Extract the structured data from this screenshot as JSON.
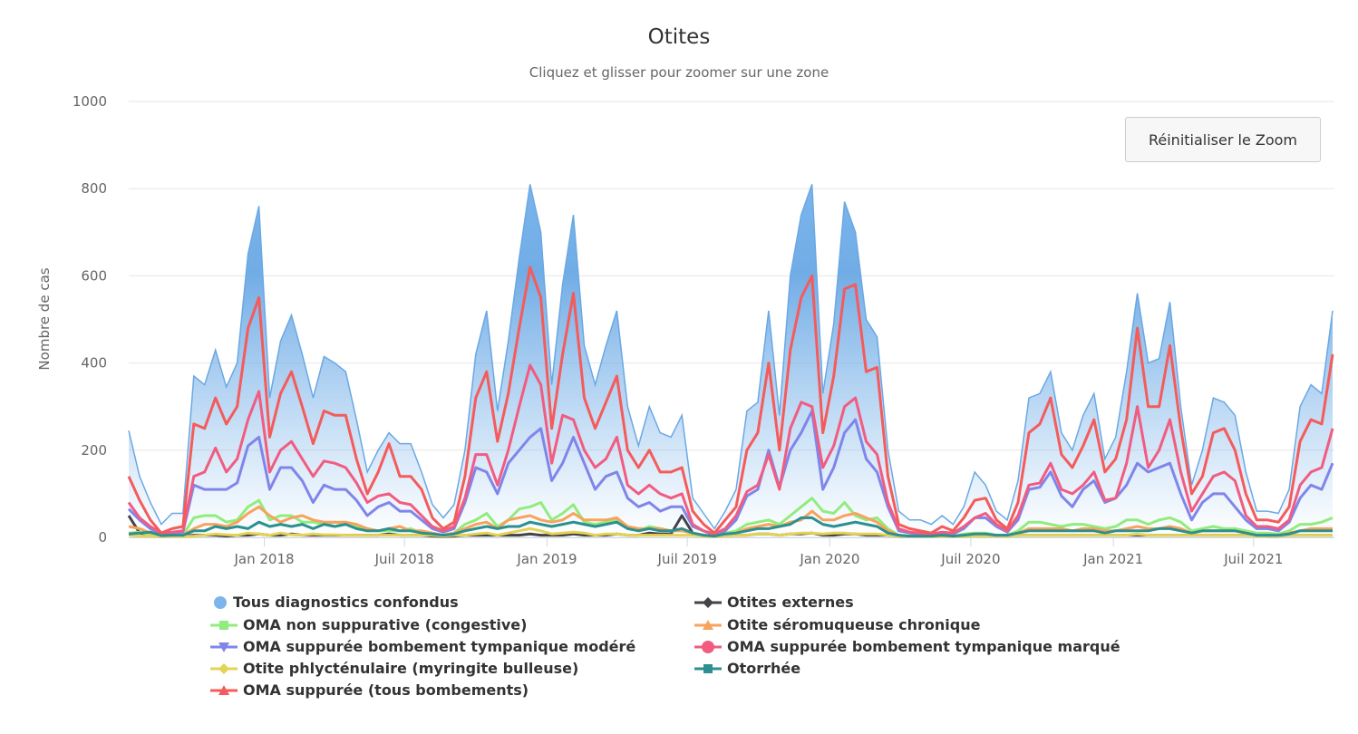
{
  "title": "Otites",
  "subtitle": "Cliquez et glisser pour zoomer sur une zone",
  "reset_zoom_label": "Réinitialiser le Zoom",
  "chart_data": {
    "type": "line",
    "title": "Otites",
    "subtitle": "Cliquez et glisser pour zoomer sur une zone",
    "xlabel": "",
    "ylabel": "Nombre de cas",
    "ylim": [
      0,
      1000
    ],
    "yticks": [
      0,
      200,
      400,
      600,
      800,
      1000
    ],
    "xticks": [
      {
        "date": "2018-01-01",
        "label": "Jan 2018"
      },
      {
        "date": "2018-07-01",
        "label": "Juil 2018"
      },
      {
        "date": "2019-01-01",
        "label": "Jan 2019"
      },
      {
        "date": "2019-07-01",
        "label": "Juil 2019"
      },
      {
        "date": "2020-01-01",
        "label": "Jan 2020"
      },
      {
        "date": "2020-07-01",
        "label": "Juil 2020"
      },
      {
        "date": "2021-01-01",
        "label": "Jan 2021"
      },
      {
        "date": "2021-07-01",
        "label": "Juil 2021"
      }
    ],
    "grid": true,
    "legend_position": "bottom",
    "x": [
      "2017-07-10",
      "2017-07-24",
      "2017-08-07",
      "2017-08-21",
      "2017-09-04",
      "2017-09-18",
      "2017-10-02",
      "2017-10-16",
      "2017-10-30",
      "2017-11-13",
      "2017-11-27",
      "2017-12-11",
      "2017-12-25",
      "2018-01-08",
      "2018-01-22",
      "2018-02-05",
      "2018-02-19",
      "2018-03-05",
      "2018-03-19",
      "2018-04-02",
      "2018-04-16",
      "2018-04-30",
      "2018-05-14",
      "2018-05-28",
      "2018-06-11",
      "2018-06-25",
      "2018-07-09",
      "2018-07-23",
      "2018-08-06",
      "2018-08-20",
      "2018-09-03",
      "2018-09-17",
      "2018-10-01",
      "2018-10-15",
      "2018-10-29",
      "2018-11-12",
      "2018-11-26",
      "2018-12-10",
      "2018-12-24",
      "2019-01-07",
      "2019-01-21",
      "2019-02-04",
      "2019-02-18",
      "2019-03-04",
      "2019-03-18",
      "2019-04-01",
      "2019-04-15",
      "2019-04-29",
      "2019-05-13",
      "2019-05-27",
      "2019-06-10",
      "2019-06-24",
      "2019-07-08",
      "2019-07-22",
      "2019-08-05",
      "2019-08-19",
      "2019-09-02",
      "2019-09-16",
      "2019-09-30",
      "2019-10-14",
      "2019-10-28",
      "2019-11-11",
      "2019-11-25",
      "2019-12-09",
      "2019-12-23",
      "2020-01-06",
      "2020-01-20",
      "2020-02-03",
      "2020-02-17",
      "2020-03-02",
      "2020-03-16",
      "2020-03-30",
      "2020-04-13",
      "2020-04-27",
      "2020-05-11",
      "2020-05-25",
      "2020-06-08",
      "2020-06-22",
      "2020-07-06",
      "2020-07-20",
      "2020-08-03",
      "2020-08-17",
      "2020-08-31",
      "2020-09-14",
      "2020-09-28",
      "2020-10-12",
      "2020-10-26",
      "2020-11-09",
      "2020-11-23",
      "2020-12-07",
      "2020-12-21",
      "2021-01-04",
      "2021-01-18",
      "2021-02-01",
      "2021-02-15",
      "2021-03-01",
      "2021-03-15",
      "2021-03-29",
      "2021-04-12",
      "2021-04-26",
      "2021-05-10",
      "2021-05-24",
      "2021-06-07",
      "2021-06-21",
      "2021-07-05",
      "2021-07-19",
      "2021-08-02",
      "2021-08-16",
      "2021-08-30",
      "2021-09-13",
      "2021-09-27",
      "2021-10-11"
    ],
    "series": [
      {
        "name": "Tous diagnostics confondus",
        "color": "#7cb5ec",
        "kind": "area",
        "marker": "circle",
        "values": [
          245,
          140,
          80,
          30,
          55,
          55,
          370,
          350,
          430,
          345,
          400,
          650,
          760,
          320,
          450,
          510,
          420,
          320,
          415,
          400,
          380,
          270,
          150,
          200,
          240,
          215,
          215,
          150,
          75,
          45,
          75,
          200,
          420,
          520,
          290,
          450,
          640,
          810,
          700,
          350,
          580,
          740,
          440,
          350,
          440,
          520,
          300,
          210,
          300,
          240,
          230,
          280,
          90,
          55,
          20,
          60,
          110,
          290,
          310,
          520,
          280,
          600,
          740,
          810,
          330,
          490,
          770,
          700,
          500,
          460,
          200,
          60,
          40,
          40,
          30,
          50,
          30,
          70,
          150,
          120,
          60,
          40,
          130,
          320,
          330,
          380,
          240,
          200,
          280,
          330,
          180,
          230,
          380,
          560,
          400,
          410,
          540,
          300,
          120,
          200,
          320,
          310,
          280,
          150,
          60,
          60,
          55,
          110,
          300,
          350,
          330,
          520
        ]
      },
      {
        "name": "Otites externes",
        "color": "#434348",
        "kind": "line",
        "marker": "diamond",
        "values": [
          50,
          10,
          5,
          2,
          2,
          3,
          5,
          5,
          5,
          3,
          5,
          5,
          8,
          5,
          5,
          8,
          5,
          5,
          5,
          5,
          5,
          5,
          5,
          5,
          8,
          5,
          5,
          5,
          3,
          2,
          3,
          5,
          5,
          5,
          5,
          5,
          5,
          8,
          5,
          5,
          5,
          8,
          5,
          5,
          5,
          8,
          5,
          5,
          10,
          8,
          8,
          50,
          10,
          5,
          2,
          5,
          5,
          5,
          8,
          8,
          5,
          8,
          8,
          10,
          5,
          5,
          8,
          8,
          5,
          5,
          5,
          3,
          2,
          2,
          2,
          3,
          2,
          3,
          5,
          5,
          5,
          3,
          5,
          5,
          5,
          5,
          5,
          5,
          5,
          5,
          5,
          5,
          5,
          5,
          5,
          5,
          5,
          5,
          5,
          5,
          5,
          5,
          5,
          5,
          5,
          3,
          3,
          5,
          5,
          5,
          5,
          5
        ]
      },
      {
        "name": "OMA non suppurative (congestive)",
        "color": "#90ed7d",
        "kind": "line",
        "marker": "square",
        "values": [
          10,
          12,
          6,
          3,
          4,
          5,
          45,
          50,
          50,
          35,
          40,
          70,
          85,
          40,
          50,
          50,
          35,
          35,
          30,
          35,
          30,
          25,
          20,
          15,
          15,
          15,
          20,
          10,
          5,
          5,
          10,
          30,
          40,
          55,
          25,
          40,
          65,
          70,
          80,
          40,
          55,
          75,
          35,
          30,
          35,
          40,
          25,
          15,
          25,
          20,
          15,
          15,
          10,
          5,
          3,
          10,
          15,
          30,
          35,
          40,
          30,
          50,
          70,
          90,
          60,
          55,
          80,
          50,
          40,
          45,
          20,
          5,
          3,
          3,
          3,
          5,
          3,
          8,
          10,
          10,
          5,
          5,
          15,
          35,
          35,
          30,
          25,
          30,
          30,
          25,
          20,
          25,
          40,
          40,
          30,
          40,
          45,
          35,
          15,
          20,
          25,
          20,
          20,
          15,
          10,
          10,
          8,
          15,
          30,
          30,
          35,
          45
        ]
      },
      {
        "name": "Otite séromuqueuse chronique",
        "color": "#f7a35c",
        "kind": "line",
        "marker": "triangle",
        "values": [
          25,
          20,
          10,
          5,
          5,
          5,
          20,
          30,
          30,
          25,
          35,
          55,
          70,
          50,
          35,
          45,
          50,
          40,
          35,
          35,
          35,
          30,
          20,
          15,
          20,
          25,
          15,
          15,
          10,
          5,
          10,
          20,
          30,
          35,
          20,
          40,
          45,
          50,
          40,
          35,
          40,
          55,
          40,
          40,
          40,
          45,
          25,
          20,
          20,
          20,
          15,
          15,
          10,
          5,
          3,
          8,
          10,
          20,
          25,
          30,
          25,
          35,
          40,
          60,
          40,
          40,
          50,
          55,
          45,
          35,
          15,
          5,
          3,
          3,
          3,
          5,
          3,
          5,
          8,
          8,
          5,
          5,
          10,
          20,
          20,
          20,
          20,
          15,
          20,
          20,
          15,
          15,
          20,
          25,
          20,
          20,
          25,
          20,
          10,
          15,
          15,
          15,
          15,
          10,
          5,
          5,
          5,
          10,
          15,
          20,
          20,
          20
        ]
      },
      {
        "name": "OMA suppurée bombement tympanique modéré",
        "color": "#8085e9",
        "kind": "line",
        "marker": "triangle-down",
        "values": [
          65,
          40,
          20,
          8,
          10,
          12,
          120,
          110,
          110,
          110,
          125,
          210,
          230,
          110,
          160,
          160,
          130,
          80,
          120,
          110,
          110,
          85,
          50,
          70,
          80,
          60,
          60,
          40,
          20,
          12,
          20,
          80,
          160,
          150,
          100,
          170,
          200,
          230,
          250,
          130,
          170,
          230,
          170,
          110,
          140,
          150,
          90,
          70,
          80,
          60,
          70,
          70,
          25,
          15,
          5,
          15,
          40,
          95,
          110,
          200,
          115,
          200,
          240,
          290,
          110,
          160,
          240,
          270,
          180,
          150,
          70,
          15,
          10,
          8,
          6,
          10,
          8,
          20,
          45,
          45,
          25,
          12,
          40,
          110,
          115,
          150,
          95,
          70,
          110,
          130,
          80,
          90,
          120,
          170,
          150,
          160,
          170,
          100,
          40,
          80,
          100,
          100,
          70,
          40,
          20,
          20,
          15,
          35,
          90,
          120,
          110,
          170
        ]
      },
      {
        "name": "OMA suppurée bombement tympanique marqué",
        "color": "#f15c80",
        "kind": "line",
        "marker": "circle",
        "values": [
          80,
          45,
          25,
          10,
          12,
          15,
          140,
          150,
          205,
          150,
          180,
          270,
          335,
          150,
          200,
          220,
          180,
          140,
          175,
          170,
          160,
          125,
          80,
          95,
          100,
          80,
          75,
          50,
          25,
          15,
          25,
          90,
          190,
          190,
          120,
          200,
          300,
          395,
          350,
          170,
          280,
          270,
          200,
          160,
          180,
          230,
          120,
          100,
          120,
          100,
          90,
          100,
          30,
          15,
          8,
          20,
          50,
          105,
          120,
          190,
          110,
          250,
          310,
          300,
          160,
          210,
          300,
          320,
          220,
          190,
          80,
          20,
          12,
          10,
          8,
          12,
          10,
          25,
          45,
          55,
          30,
          15,
          50,
          120,
          125,
          170,
          110,
          100,
          120,
          150,
          85,
          90,
          170,
          300,
          160,
          200,
          270,
          150,
          60,
          100,
          140,
          150,
          130,
          50,
          25,
          25,
          20,
          40,
          120,
          150,
          160,
          250
        ]
      },
      {
        "name": "Otite phlycténulaire (myringite bulleuse)",
        "color": "#e4d354",
        "kind": "line",
        "marker": "diamond",
        "values": [
          5,
          3,
          3,
          2,
          2,
          2,
          3,
          5,
          8,
          6,
          5,
          10,
          8,
          5,
          10,
          6,
          5,
          8,
          6,
          6,
          5,
          5,
          5,
          5,
          5,
          5,
          5,
          5,
          5,
          3,
          5,
          5,
          8,
          10,
          5,
          10,
          15,
          20,
          15,
          8,
          10,
          12,
          10,
          5,
          8,
          8,
          5,
          5,
          5,
          5,
          5,
          5,
          5,
          3,
          2,
          3,
          5,
          5,
          8,
          8,
          5,
          8,
          10,
          10,
          8,
          10,
          10,
          8,
          8,
          8,
          5,
          3,
          2,
          2,
          2,
          2,
          2,
          2,
          3,
          3,
          3,
          2,
          5,
          5,
          5,
          5,
          5,
          5,
          5,
          5,
          5,
          5,
          5,
          8,
          5,
          5,
          5,
          5,
          5,
          5,
          5,
          5,
          5,
          5,
          3,
          3,
          3,
          5,
          5,
          5,
          5,
          5
        ]
      },
      {
        "name": "Otorrhée",
        "color": "#2b908f",
        "kind": "line",
        "marker": "square",
        "values": [
          8,
          10,
          12,
          4,
          5,
          5,
          15,
          15,
          25,
          20,
          25,
          20,
          35,
          25,
          30,
          25,
          30,
          20,
          30,
          25,
          30,
          20,
          15,
          15,
          20,
          15,
          15,
          10,
          8,
          5,
          8,
          15,
          20,
          25,
          20,
          25,
          25,
          35,
          30,
          25,
          30,
          35,
          30,
          25,
          30,
          35,
          20,
          15,
          20,
          15,
          15,
          20,
          10,
          5,
          3,
          8,
          10,
          15,
          20,
          20,
          25,
          30,
          45,
          45,
          30,
          25,
          30,
          35,
          30,
          25,
          10,
          5,
          3,
          3,
          3,
          5,
          3,
          5,
          8,
          8,
          5,
          5,
          10,
          15,
          15,
          15,
          15,
          15,
          15,
          15,
          10,
          15,
          15,
          15,
          15,
          20,
          20,
          15,
          10,
          15,
          15,
          15,
          15,
          10,
          5,
          5,
          5,
          8,
          15,
          15,
          15,
          15
        ]
      },
      {
        "name": "OMA suppurée (tous bombements)",
        "color": "#f45b5b",
        "kind": "line",
        "marker": "triangle",
        "values": [
          140,
          85,
          40,
          10,
          20,
          25,
          260,
          250,
          320,
          260,
          300,
          480,
          550,
          230,
          330,
          380,
          300,
          215,
          290,
          280,
          280,
          180,
          100,
          150,
          215,
          140,
          140,
          110,
          45,
          20,
          35,
          140,
          320,
          380,
          220,
          330,
          480,
          620,
          550,
          250,
          420,
          560,
          320,
          250,
          310,
          370,
          200,
          160,
          200,
          150,
          150,
          160,
          60,
          30,
          10,
          40,
          70,
          200,
          240,
          400,
          200,
          430,
          550,
          600,
          240,
          370,
          570,
          580,
          380,
          390,
          140,
          30,
          20,
          15,
          10,
          25,
          15,
          45,
          85,
          90,
          40,
          20,
          80,
          240,
          260,
          320,
          190,
          160,
          210,
          270,
          150,
          180,
          270,
          480,
          300,
          300,
          440,
          250,
          100,
          140,
          240,
          250,
          200,
          100,
          40,
          40,
          35,
          70,
          220,
          270,
          260,
          420
        ]
      }
    ]
  },
  "legend": [
    {
      "label": "Tous diagnostics confondus",
      "series": 0
    },
    {
      "label": "Otites externes",
      "series": 1
    },
    {
      "label": "OMA non suppurative (congestive)",
      "series": 2
    },
    {
      "label": "Otite séromuqueuse chronique",
      "series": 3
    },
    {
      "label": "OMA suppurée bombement tympanique modéré",
      "series": 4
    },
    {
      "label": "OMA suppurée bombement tympanique marqué",
      "series": 5
    },
    {
      "label": "Otite phlycténulaire (myringite bulleuse)",
      "series": 6
    },
    {
      "label": "Otorrhée",
      "series": 7
    },
    {
      "label": "OMA suppurée (tous bombements)",
      "series": 8
    }
  ]
}
